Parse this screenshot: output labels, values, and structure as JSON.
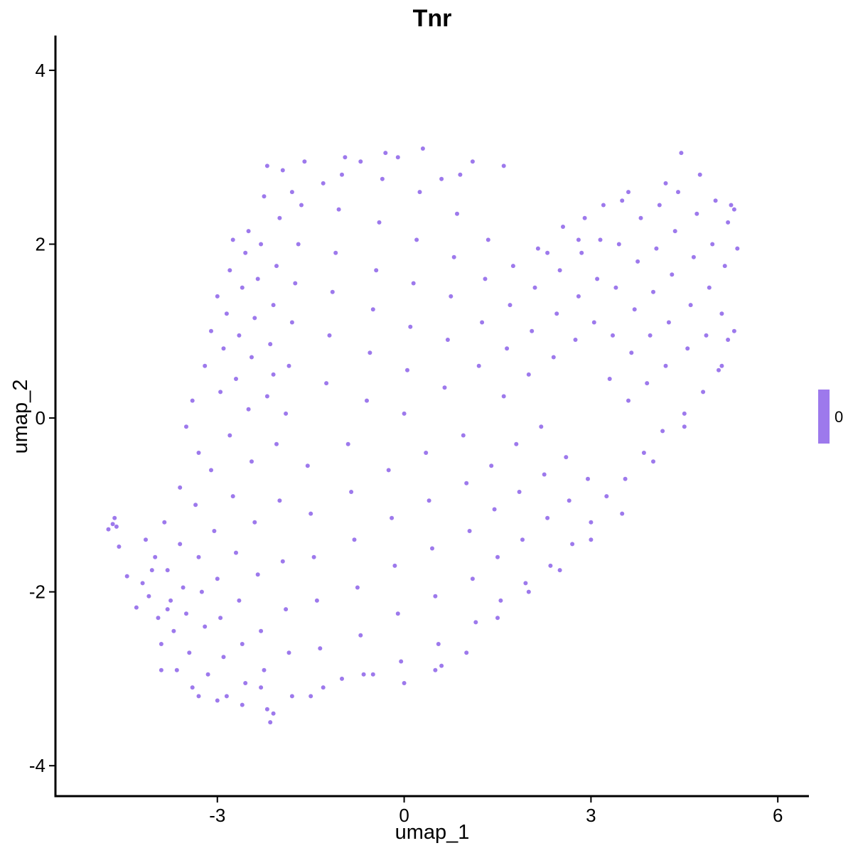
{
  "chart_data": {
    "type": "scatter",
    "title": "Tnr",
    "xlabel": "umap_1",
    "ylabel": "umap_2",
    "xlim": [
      -5.6,
      6.5
    ],
    "ylim": [
      -4.35,
      4.4
    ],
    "xticks": [
      -3,
      0,
      3,
      6
    ],
    "yticks": [
      -4,
      -2,
      0,
      2,
      4
    ],
    "xtick_labels": [
      "-3",
      "0",
      "3",
      "6"
    ],
    "ytick_labels": [
      "-4",
      "-2",
      "0",
      "2",
      "4"
    ],
    "point_color": "#9d79ec",
    "legend": {
      "position": "right",
      "label": "0",
      "color": "#9d79ec"
    },
    "grid": false,
    "series": [
      {
        "values": [
          [
            -4.75,
            -1.28
          ],
          [
            -4.68,
            -1.22
          ],
          [
            -4.62,
            -1.25
          ],
          [
            -4.65,
            -1.15
          ],
          [
            -4.58,
            -1.48
          ],
          [
            -4.45,
            -1.82
          ],
          [
            -4.3,
            -2.18
          ],
          [
            -4.2,
            -1.9
          ],
          [
            -4.1,
            -2.05
          ],
          [
            -4.15,
            -1.4
          ],
          [
            -4.0,
            -1.6
          ],
          [
            -3.95,
            -2.3
          ],
          [
            -3.9,
            -2.6
          ],
          [
            -3.85,
            -1.2
          ],
          [
            -3.8,
            -1.75
          ],
          [
            -3.75,
            -2.1
          ],
          [
            -3.7,
            -2.45
          ],
          [
            -3.65,
            -2.9
          ],
          [
            -3.6,
            -1.45
          ],
          [
            -3.55,
            -1.95
          ],
          [
            -3.5,
            -2.25
          ],
          [
            -3.45,
            -2.7
          ],
          [
            -3.4,
            -3.1
          ],
          [
            -3.35,
            -1.0
          ],
          [
            -3.3,
            -1.6
          ],
          [
            -3.25,
            -2.0
          ],
          [
            -3.2,
            -2.4
          ],
          [
            -3.15,
            -2.95
          ],
          [
            -3.1,
            -0.6
          ],
          [
            -3.05,
            -1.3
          ],
          [
            -3.0,
            -1.85
          ],
          [
            -2.95,
            -2.3
          ],
          [
            -2.9,
            -2.75
          ],
          [
            -2.85,
            -3.2
          ],
          [
            -2.8,
            -0.2
          ],
          [
            -2.75,
            -0.9
          ],
          [
            -2.7,
            -1.55
          ],
          [
            -2.65,
            -2.1
          ],
          [
            -2.6,
            -2.6
          ],
          [
            -2.55,
            -3.05
          ],
          [
            -2.5,
            0.1
          ],
          [
            -2.45,
            -0.5
          ],
          [
            -2.4,
            -1.2
          ],
          [
            -2.35,
            -1.8
          ],
          [
            -2.3,
            -2.45
          ],
          [
            -2.25,
            -2.9
          ],
          [
            -2.2,
            -3.35
          ],
          [
            -2.15,
            -3.5
          ],
          [
            -2.1,
            0.5
          ],
          [
            -2.05,
            -0.3
          ],
          [
            -2.0,
            -0.95
          ],
          [
            -1.95,
            -1.65
          ],
          [
            -1.9,
            -2.2
          ],
          [
            -1.85,
            -2.7
          ],
          [
            -1.8,
            -3.2
          ],
          [
            -3.4,
            0.2
          ],
          [
            -3.3,
            -0.4
          ],
          [
            -3.2,
            0.6
          ],
          [
            -3.1,
            1.0
          ],
          [
            -3.0,
            1.4
          ],
          [
            -2.95,
            0.3
          ],
          [
            -2.9,
            0.8
          ],
          [
            -2.85,
            1.2
          ],
          [
            -2.8,
            1.7
          ],
          [
            -2.75,
            2.05
          ],
          [
            -2.7,
            0.45
          ],
          [
            -2.65,
            0.95
          ],
          [
            -2.6,
            1.5
          ],
          [
            -2.55,
            1.9
          ],
          [
            -2.5,
            2.15
          ],
          [
            -2.45,
            0.7
          ],
          [
            -2.4,
            1.15
          ],
          [
            -2.35,
            1.6
          ],
          [
            -2.3,
            2.0
          ],
          [
            -2.25,
            2.55
          ],
          [
            -2.2,
            0.25
          ],
          [
            -2.15,
            0.85
          ],
          [
            -2.1,
            1.3
          ],
          [
            -2.05,
            1.75
          ],
          [
            -2.0,
            2.3
          ],
          [
            -1.95,
            2.85
          ],
          [
            -1.9,
            0.05
          ],
          [
            -1.85,
            0.6
          ],
          [
            -1.8,
            1.1
          ],
          [
            -1.75,
            1.55
          ],
          [
            -1.7,
            2.0
          ],
          [
            -1.65,
            2.45
          ],
          [
            -1.6,
            2.95
          ],
          [
            -1.55,
            -0.55
          ],
          [
            -1.5,
            -1.1
          ],
          [
            -1.45,
            -1.6
          ],
          [
            -1.4,
            -2.1
          ],
          [
            -1.35,
            -2.65
          ],
          [
            -1.3,
            -3.1
          ],
          [
            -1.25,
            0.4
          ],
          [
            -1.2,
            0.95
          ],
          [
            -1.15,
            1.45
          ],
          [
            -1.1,
            1.9
          ],
          [
            -1.05,
            2.4
          ],
          [
            -1.0,
            2.8
          ],
          [
            -0.95,
            3.0
          ],
          [
            -0.9,
            -0.3
          ],
          [
            -0.85,
            -0.85
          ],
          [
            -0.8,
            -1.4
          ],
          [
            -0.75,
            -1.95
          ],
          [
            -0.7,
            -2.5
          ],
          [
            -0.65,
            -2.95
          ],
          [
            -0.6,
            0.2
          ],
          [
            -0.55,
            0.75
          ],
          [
            -0.5,
            1.25
          ],
          [
            -0.45,
            1.7
          ],
          [
            -0.4,
            2.25
          ],
          [
            -0.35,
            2.75
          ],
          [
            -0.3,
            3.05
          ],
          [
            -0.25,
            -0.6
          ],
          [
            -0.2,
            -1.15
          ],
          [
            -0.15,
            -1.7
          ],
          [
            -0.1,
            -2.25
          ],
          [
            -0.05,
            -2.8
          ],
          [
            0.0,
            0.05
          ],
          [
            0.05,
            0.55
          ],
          [
            0.1,
            1.05
          ],
          [
            0.15,
            1.55
          ],
          [
            0.2,
            2.05
          ],
          [
            0.25,
            2.6
          ],
          [
            0.3,
            3.1
          ],
          [
            0.35,
            -0.4
          ],
          [
            0.4,
            -0.95
          ],
          [
            0.45,
            -1.5
          ],
          [
            0.5,
            -2.05
          ],
          [
            0.55,
            -2.6
          ],
          [
            0.6,
            -2.85
          ],
          [
            0.65,
            0.35
          ],
          [
            0.7,
            0.9
          ],
          [
            0.75,
            1.4
          ],
          [
            0.8,
            1.85
          ],
          [
            0.85,
            2.35
          ],
          [
            0.9,
            2.8
          ],
          [
            0.95,
            -0.2
          ],
          [
            1.0,
            -0.75
          ],
          [
            1.05,
            -1.3
          ],
          [
            1.1,
            -1.85
          ],
          [
            1.15,
            -2.35
          ],
          [
            1.2,
            0.6
          ],
          [
            1.25,
            1.1
          ],
          [
            1.3,
            1.6
          ],
          [
            1.35,
            2.05
          ],
          [
            1.4,
            -0.55
          ],
          [
            1.45,
            -1.05
          ],
          [
            1.5,
            -1.6
          ],
          [
            1.55,
            -2.1
          ],
          [
            1.6,
            0.25
          ],
          [
            1.65,
            0.8
          ],
          [
            1.7,
            1.3
          ],
          [
            1.75,
            1.75
          ],
          [
            1.8,
            -0.3
          ],
          [
            1.85,
            -0.85
          ],
          [
            1.9,
            -1.4
          ],
          [
            1.95,
            -1.9
          ],
          [
            2.0,
            0.5
          ],
          [
            2.05,
            1.0
          ],
          [
            2.1,
            1.5
          ],
          [
            2.15,
            1.95
          ],
          [
            2.2,
            -0.1
          ],
          [
            2.25,
            -0.65
          ],
          [
            2.3,
            -1.15
          ],
          [
            2.35,
            -1.7
          ],
          [
            2.4,
            0.7
          ],
          [
            2.45,
            1.2
          ],
          [
            2.5,
            1.7
          ],
          [
            2.55,
            2.2
          ],
          [
            2.6,
            -0.45
          ],
          [
            2.65,
            -0.95
          ],
          [
            2.7,
            -1.45
          ],
          [
            2.75,
            0.9
          ],
          [
            2.8,
            1.4
          ],
          [
            2.85,
            1.9
          ],
          [
            2.9,
            2.3
          ],
          [
            2.95,
            -0.7
          ],
          [
            3.0,
            -1.2
          ],
          [
            3.05,
            1.1
          ],
          [
            3.1,
            1.6
          ],
          [
            3.15,
            2.05
          ],
          [
            3.2,
            2.45
          ],
          [
            3.25,
            -0.9
          ],
          [
            3.3,
            0.45
          ],
          [
            3.35,
            0.95
          ],
          [
            3.4,
            1.5
          ],
          [
            3.45,
            2.0
          ],
          [
            3.5,
            2.5
          ],
          [
            3.55,
            -0.7
          ],
          [
            3.6,
            0.2
          ],
          [
            3.65,
            0.75
          ],
          [
            3.7,
            1.25
          ],
          [
            3.75,
            1.8
          ],
          [
            3.8,
            2.3
          ],
          [
            3.85,
            -0.4
          ],
          [
            3.9,
            0.4
          ],
          [
            3.95,
            0.95
          ],
          [
            4.0,
            1.45
          ],
          [
            4.05,
            1.95
          ],
          [
            4.1,
            2.45
          ],
          [
            4.15,
            -0.15
          ],
          [
            4.2,
            0.6
          ],
          [
            4.25,
            1.1
          ],
          [
            4.3,
            1.65
          ],
          [
            4.35,
            2.15
          ],
          [
            4.4,
            2.6
          ],
          [
            4.45,
            3.05
          ],
          [
            4.5,
            0.05
          ],
          [
            4.55,
            0.8
          ],
          [
            4.6,
            1.3
          ],
          [
            4.65,
            1.85
          ],
          [
            4.7,
            2.35
          ],
          [
            4.75,
            2.8
          ],
          [
            4.8,
            0.3
          ],
          [
            4.85,
            0.95
          ],
          [
            4.9,
            1.5
          ],
          [
            4.95,
            2.0
          ],
          [
            5.0,
            2.5
          ],
          [
            5.05,
            0.55
          ],
          [
            5.1,
            1.2
          ],
          [
            5.15,
            1.75
          ],
          [
            5.2,
            2.25
          ],
          [
            5.25,
            2.45
          ],
          [
            5.3,
            1.0
          ],
          [
            5.35,
            1.95
          ],
          [
            5.3,
            2.4
          ],
          [
            5.2,
            0.9
          ],
          [
            5.1,
            0.6
          ],
          [
            -3.6,
            -0.8
          ],
          [
            -3.5,
            -0.1
          ],
          [
            -3.8,
            -2.2
          ],
          [
            -4.05,
            -1.75
          ],
          [
            -3.9,
            -2.9
          ],
          [
            -3.3,
            -3.2
          ],
          [
            -3.0,
            -3.25
          ],
          [
            -2.6,
            -3.3
          ],
          [
            -2.3,
            -3.1
          ],
          [
            -2.1,
            -3.4
          ],
          [
            -1.5,
            -3.2
          ],
          [
            -1.0,
            -3.0
          ],
          [
            -0.5,
            -2.95
          ],
          [
            0.0,
            -3.05
          ],
          [
            0.5,
            -2.9
          ],
          [
            1.0,
            -2.7
          ],
          [
            1.5,
            -2.3
          ],
          [
            2.0,
            -2.0
          ],
          [
            2.5,
            -1.75
          ],
          [
            3.0,
            -1.4
          ],
          [
            3.5,
            -1.1
          ],
          [
            4.0,
            -0.5
          ],
          [
            4.5,
            -0.1
          ],
          [
            -2.2,
            2.9
          ],
          [
            -1.8,
            2.6
          ],
          [
            -1.3,
            2.7
          ],
          [
            -0.7,
            2.95
          ],
          [
            -0.1,
            3.0
          ],
          [
            0.6,
            2.75
          ],
          [
            1.1,
            2.95
          ],
          [
            1.6,
            2.9
          ],
          [
            2.3,
            1.9
          ],
          [
            2.8,
            2.05
          ],
          [
            3.6,
            2.6
          ],
          [
            4.2,
            2.7
          ]
        ]
      }
    ]
  }
}
